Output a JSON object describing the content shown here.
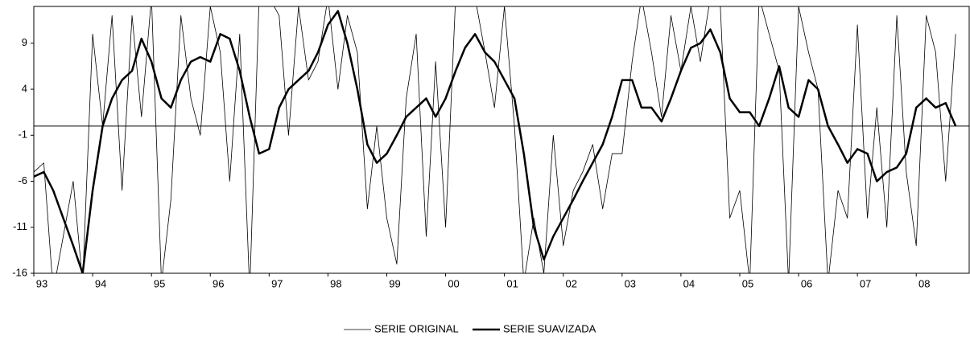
{
  "chart_data": {
    "type": "line",
    "x": [
      1993,
      1993.17,
      1993.33,
      1993.5,
      1993.67,
      1993.83,
      1994,
      1994.17,
      1994.33,
      1994.5,
      1994.67,
      1994.83,
      1995,
      1995.17,
      1995.33,
      1995.5,
      1995.67,
      1995.83,
      1996,
      1996.17,
      1996.33,
      1996.5,
      1996.67,
      1996.83,
      1997,
      1997.17,
      1997.33,
      1997.5,
      1997.67,
      1997.83,
      1998,
      1998.17,
      1998.33,
      1998.5,
      1998.67,
      1998.83,
      1999,
      1999.17,
      1999.33,
      1999.5,
      1999.67,
      1999.83,
      2000,
      2000.17,
      2000.33,
      2000.5,
      2000.67,
      2000.83,
      2001,
      2001.17,
      2001.33,
      2001.5,
      2001.67,
      2001.83,
      2002,
      2002.17,
      2002.33,
      2002.5,
      2002.67,
      2002.83,
      2003,
      2003.17,
      2003.33,
      2003.5,
      2003.67,
      2003.83,
      2004,
      2004.17,
      2004.33,
      2004.5,
      2004.67,
      2004.83,
      2005,
      2005.17,
      2005.33,
      2005.5,
      2005.67,
      2005.83,
      2006,
      2006.17,
      2006.33,
      2006.5,
      2006.67,
      2006.83,
      2007,
      2007.17,
      2007.33,
      2007.5,
      2007.67,
      2007.83,
      2008,
      2008.17,
      2008.33,
      2008.5,
      2008.67
    ],
    "series": [
      {
        "name": "SERIE ORIGINAL",
        "color": "#000000",
        "width": 0.8,
        "values": [
          -5,
          -4,
          -18,
          -12,
          -6,
          -17,
          10,
          0,
          12,
          -7,
          12,
          1,
          14,
          -17,
          -8,
          12,
          3,
          -1,
          13,
          8,
          -6,
          10,
          -18,
          14,
          14,
          12,
          -1,
          13,
          5,
          7,
          14,
          4,
          12,
          8,
          -9,
          0,
          -10,
          -15,
          3,
          10,
          -12,
          7,
          -11,
          14,
          13,
          14,
          8,
          2,
          13,
          0,
          -17,
          -10,
          -16,
          -1,
          -13,
          -7,
          -5,
          -2,
          -9,
          -3,
          -3,
          7,
          14,
          8,
          1,
          12,
          6,
          13,
          7,
          14,
          13,
          -10,
          -7,
          -17,
          14,
          10,
          6,
          -17,
          13,
          8,
          4,
          -17,
          -7,
          -10,
          11,
          -10,
          2,
          -11,
          12,
          -5,
          -13,
          12,
          8,
          -6,
          10
        ]
      },
      {
        "name": "SERIE SUAVIZADA",
        "color": "#000000",
        "width": 2.5,
        "values": [
          -5.5,
          -5,
          -7,
          -10,
          -13,
          -16,
          -7,
          0,
          3,
          5,
          6,
          9.5,
          7,
          3,
          2,
          5,
          7,
          7.5,
          7,
          10,
          9.5,
          6,
          1,
          -3,
          -2.5,
          2,
          4,
          5,
          6,
          8,
          11,
          12.5,
          9,
          4,
          -2,
          -4,
          -3,
          -1,
          1,
          2,
          3,
          1,
          3,
          6,
          8.5,
          10,
          8,
          7,
          5,
          3,
          -3,
          -11,
          -14.5,
          -12,
          -10,
          -8,
          -6,
          -4,
          -2,
          1,
          5,
          5,
          2,
          2,
          0.5,
          3,
          6,
          8.5,
          9,
          10.5,
          8,
          3,
          1.5,
          1.5,
          0,
          3,
          6.5,
          2,
          1,
          5,
          4,
          0,
          -2,
          -4,
          -2.5,
          -3,
          -6,
          -5,
          -4.5,
          -3,
          2,
          3,
          2,
          2.5,
          0
        ]
      }
    ],
    "xlim": [
      1993,
      2008.9
    ],
    "xticks": [
      {
        "value": 1993,
        "label": "93"
      },
      {
        "value": 1994,
        "label": "94"
      },
      {
        "value": 1995,
        "label": "95"
      },
      {
        "value": 1996,
        "label": "96"
      },
      {
        "value": 1997,
        "label": "97"
      },
      {
        "value": 1998,
        "label": "98"
      },
      {
        "value": 1999,
        "label": "99"
      },
      {
        "value": 2000,
        "label": "00"
      },
      {
        "value": 2001,
        "label": "01"
      },
      {
        "value": 2002,
        "label": "02"
      },
      {
        "value": 2003,
        "label": "03"
      },
      {
        "value": 2004,
        "label": "04"
      },
      {
        "value": 2005,
        "label": "05"
      },
      {
        "value": 2006,
        "label": "06"
      },
      {
        "value": 2007,
        "label": "07"
      },
      {
        "value": 2008,
        "label": "08"
      }
    ],
    "ylim": [
      -16,
      13
    ],
    "yticks": [
      9,
      4,
      -1,
      -6,
      -11,
      -16
    ],
    "legend": "bottom"
  }
}
